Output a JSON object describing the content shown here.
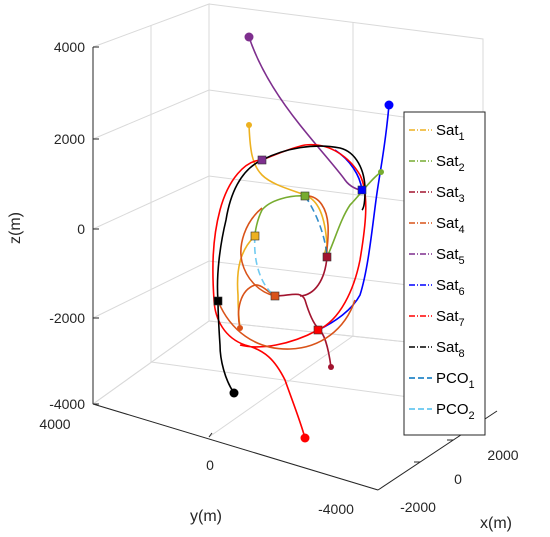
{
  "chart_data": {
    "type": "line-3d",
    "xlabel": "x(m)",
    "ylabel": "y(m)",
    "zlabel": "z(m)",
    "x_ticks": [
      "-2000",
      "0",
      "2000"
    ],
    "y_ticks": [
      "4000",
      "0",
      "-4000"
    ],
    "z_ticks": [
      "4000",
      "2000",
      "0",
      "-2000",
      "-4000"
    ],
    "xlim": [
      -3000,
      3000
    ],
    "ylim": [
      -5000,
      5000
    ],
    "zlim": [
      -4000,
      4000
    ],
    "grid": true,
    "legend_position": "right",
    "series": [
      {
        "name": "Sat",
        "sub": "1",
        "color": "#EDB120",
        "start": [
          -1400,
          700,
          2300
        ],
        "end": [
          -800,
          -300,
          -200
        ]
      },
      {
        "name": "Sat",
        "sub": "2",
        "color": "#77AC30",
        "start": [
          1800,
          -1500,
          1900
        ],
        "end": [
          200,
          200,
          700
        ]
      },
      {
        "name": "Sat",
        "sub": "3",
        "color": "#A2142F",
        "start": [
          -200,
          -1300,
          -3000
        ],
        "end": [
          0,
          -600,
          -700
        ]
      },
      {
        "name": "Sat",
        "sub": "4",
        "color": "#D95319",
        "start": [
          -2200,
          300,
          -2300
        ],
        "end": [
          -500,
          200,
          -1600
        ]
      },
      {
        "name": "Sat",
        "sub": "5",
        "color": "#7E2F8E",
        "start": [
          -900,
          300,
          4400
        ],
        "end": [
          600,
          -800,
          900
        ]
      },
      {
        "name": "Sat",
        "sub": "6",
        "color": "#0000FF",
        "start": [
          1600,
          -2200,
          2800
        ],
        "end": [
          600,
          -800,
          900
        ]
      },
      {
        "name": "Sat",
        "sub": "7",
        "color": "#FF0000",
        "start": [
          -400,
          -200,
          -4500
        ],
        "end": [
          -600,
          300,
          -2400
        ]
      },
      {
        "name": "Sat",
        "sub": "8",
        "color": "#000000",
        "start": [
          -1000,
          900,
          -3600
        ],
        "end": [
          -1200,
          1800,
          -1700
        ]
      },
      {
        "name": "PCO",
        "sub": "1",
        "color": "#0072BD"
      },
      {
        "name": "PCO",
        "sub": "2",
        "color": "#4DBEEE"
      }
    ]
  }
}
